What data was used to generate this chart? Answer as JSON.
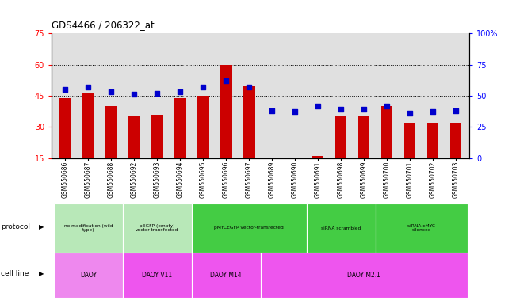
{
  "title": "GDS4466 / 206322_at",
  "samples": [
    "GSM550686",
    "GSM550687",
    "GSM550688",
    "GSM550692",
    "GSM550693",
    "GSM550694",
    "GSM550695",
    "GSM550696",
    "GSM550697",
    "GSM550689",
    "GSM550690",
    "GSM550691",
    "GSM550698",
    "GSM550699",
    "GSM550700",
    "GSM550701",
    "GSM550702",
    "GSM550703"
  ],
  "counts": [
    44,
    46,
    40,
    35,
    36,
    44,
    45,
    60,
    50,
    15,
    15,
    16,
    35,
    35,
    40,
    32,
    32,
    32
  ],
  "percentiles": [
    55,
    57,
    53,
    51,
    52,
    53,
    57,
    62,
    57,
    38,
    37,
    42,
    39,
    39,
    42,
    36,
    37,
    38
  ],
  "ylim_left": [
    15,
    75
  ],
  "ylim_right": [
    0,
    100
  ],
  "yticks_left": [
    15,
    30,
    45,
    60,
    75
  ],
  "yticks_right": [
    0,
    25,
    50,
    75,
    100
  ],
  "bar_color": "#cc0000",
  "dot_color": "#0000cc",
  "background_color": "#e0e0e0",
  "protocol_groups": [
    {
      "label": "no modification (wild\ntype)",
      "start": 0,
      "end": 3,
      "color": "#b8e8b8"
    },
    {
      "label": "pEGFP (empty)\nvector-transfected",
      "start": 3,
      "end": 6,
      "color": "#b8e8b8"
    },
    {
      "label": "pMYCEGFP vector-transfected",
      "start": 6,
      "end": 11,
      "color": "#44cc44"
    },
    {
      "label": "siRNA scrambled",
      "start": 11,
      "end": 14,
      "color": "#44cc44"
    },
    {
      "label": "siRNA cMYC\nsilenced",
      "start": 14,
      "end": 18,
      "color": "#44cc44"
    }
  ],
  "cellline_groups": [
    {
      "label": "DAOY",
      "start": 0,
      "end": 3,
      "color": "#ee88ee"
    },
    {
      "label": "DAOY V11",
      "start": 3,
      "end": 6,
      "color": "#ee55ee"
    },
    {
      "label": "DAOY M14",
      "start": 6,
      "end": 9,
      "color": "#ee55ee"
    },
    {
      "label": "DAOY M2.1",
      "start": 9,
      "end": 18,
      "color": "#ee55ee"
    }
  ],
  "legend_count_color": "#cc0000",
  "legend_dot_color": "#0000cc",
  "dot_size": 20,
  "bar_width": 0.5,
  "grid_color": "black",
  "grid_yticks": [
    30,
    45,
    60
  ]
}
